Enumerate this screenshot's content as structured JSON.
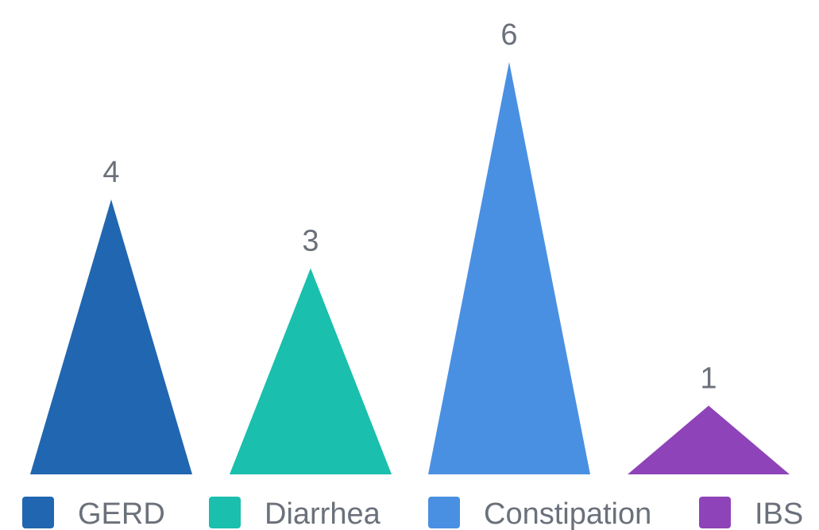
{
  "chart_data": {
    "type": "bar",
    "mark_shape": "triangle",
    "categories": [
      "GERD",
      "Diarrhea",
      "Constipation",
      "IBS"
    ],
    "values": [
      4,
      3,
      6,
      1
    ],
    "colors": [
      "#2166b0",
      "#1abfad",
      "#4a90e2",
      "#8e44b8"
    ],
    "ylim": [
      0,
      6
    ],
    "grid": false,
    "legend_position": "bottom",
    "title": "",
    "xlabel": "",
    "ylabel": ""
  },
  "legend": {
    "items": [
      {
        "label": "GERD",
        "color": "#2166b0"
      },
      {
        "label": "Diarrhea",
        "color": "#1abfad"
      },
      {
        "label": "Constipation",
        "color": "#4a90e2"
      },
      {
        "label": "IBS",
        "color": "#8e44b8"
      }
    ]
  }
}
